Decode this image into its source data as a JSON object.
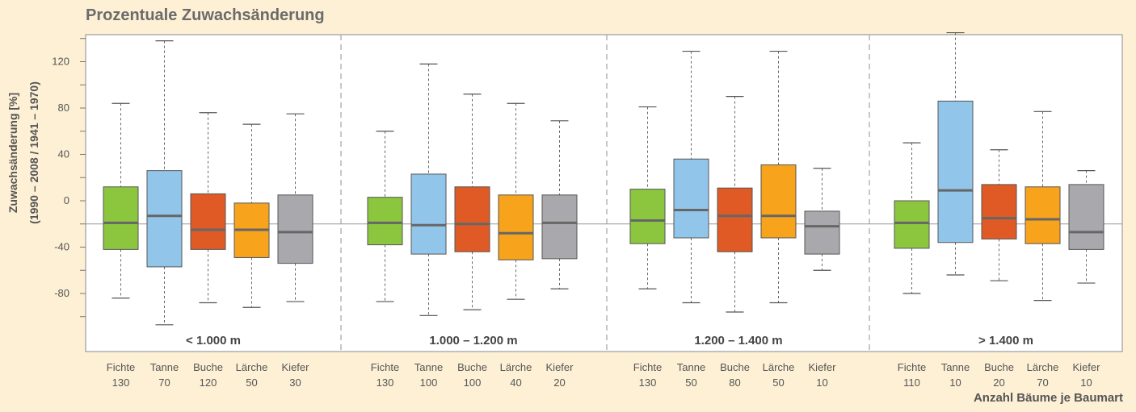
{
  "chart_data": {
    "type": "boxplot",
    "title": "Prozentuale Zuwachsänderung",
    "ylabel_line1": "Zuwachsänderung [%]",
    "ylabel_line2": "(1990 – 2008 / 1941 – 1970)",
    "xlabel": "Anzahl Bäume je Baumart",
    "yticks": [
      120,
      80,
      40,
      0,
      -40,
      -80
    ],
    "ylim": [
      -122,
      148
    ],
    "reference_line": -20,
    "grid": false,
    "colors": {
      "Fichte": "#8cc63f",
      "Tanne": "#92c5ea",
      "Buche": "#e05a26",
      "Lärche": "#f7a31c",
      "Kiefer": "#a9a9ad"
    },
    "groups": [
      {
        "label": "< 1.000 m",
        "boxes": [
          {
            "species": "Fichte",
            "n": "130",
            "min": -84,
            "q1": -42,
            "median": -19,
            "q3": 12,
            "max": 84
          },
          {
            "species": "Tanne",
            "n": "70",
            "min": -107,
            "q1": -57,
            "median": -13,
            "q3": 26,
            "max": 138
          },
          {
            "species": "Buche",
            "n": "120",
            "min": -88,
            "q1": -42,
            "median": -25,
            "q3": 6,
            "max": 76
          },
          {
            "species": "Lärche",
            "n": "50",
            "min": -92,
            "q1": -49,
            "median": -25,
            "q3": -2,
            "max": 66
          },
          {
            "species": "Kiefer",
            "n": "30",
            "min": -87,
            "q1": -54,
            "median": -27,
            "q3": 5,
            "max": 75
          }
        ]
      },
      {
        "label": "1.000 – 1.200 m",
        "boxes": [
          {
            "species": "Fichte",
            "n": "130",
            "min": -87,
            "q1": -38,
            "median": -19,
            "q3": 3,
            "max": 60
          },
          {
            "species": "Tanne",
            "n": "100",
            "min": -99,
            "q1": -46,
            "median": -21,
            "q3": 23,
            "max": 118
          },
          {
            "species": "Buche",
            "n": "100",
            "min": -94,
            "q1": -44,
            "median": -20,
            "q3": 12,
            "max": 92
          },
          {
            "species": "Lärche",
            "n": "40",
            "min": -85,
            "q1": -51,
            "median": -28,
            "q3": 5,
            "max": 84
          },
          {
            "species": "Kiefer",
            "n": "20",
            "min": -76,
            "q1": -50,
            "median": -19,
            "q3": 5,
            "max": 69
          }
        ]
      },
      {
        "label": "1.200 – 1.400 m",
        "boxes": [
          {
            "species": "Fichte",
            "n": "130",
            "min": -76,
            "q1": -37,
            "median": -17,
            "q3": 10,
            "max": 81
          },
          {
            "species": "Tanne",
            "n": "50",
            "min": -88,
            "q1": -32,
            "median": -8,
            "q3": 36,
            "max": 129
          },
          {
            "species": "Buche",
            "n": "80",
            "min": -96,
            "q1": -44,
            "median": -13,
            "q3": 11,
            "max": 90
          },
          {
            "species": "Lärche",
            "n": "50",
            "min": -88,
            "q1": -32,
            "median": -13,
            "q3": 31,
            "max": 129
          },
          {
            "species": "Kiefer",
            "n": "10",
            "min": -60,
            "q1": -46,
            "median": -22,
            "q3": -9,
            "max": 28
          }
        ]
      },
      {
        "label": "> 1.400 m",
        "boxes": [
          {
            "species": "Fichte",
            "n": "110",
            "min": -80,
            "q1": -41,
            "median": -19,
            "q3": 0,
            "max": 50
          },
          {
            "species": "Tanne",
            "n": "10",
            "min": -64,
            "q1": -36,
            "median": 9,
            "q3": 86,
            "max": 145
          },
          {
            "species": "Buche",
            "n": "20",
            "min": -69,
            "q1": -33,
            "median": -15,
            "q3": 14,
            "max": 44
          },
          {
            "species": "Lärche",
            "n": "70",
            "min": -86,
            "q1": -37,
            "median": -16,
            "q3": 12,
            "max": 77
          },
          {
            "species": "Kiefer",
            "n": "10",
            "min": -71,
            "q1": -42,
            "median": -27,
            "q3": 14,
            "max": 26
          }
        ]
      }
    ]
  }
}
